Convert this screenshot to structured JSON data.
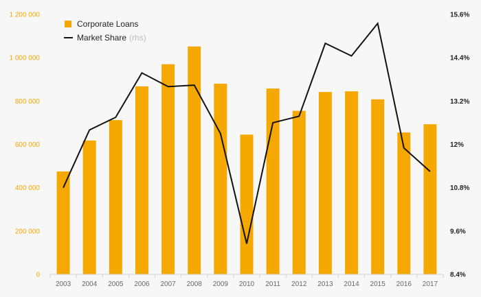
{
  "chart_data": {
    "type": "bar+line",
    "categories": [
      "2003",
      "2004",
      "2005",
      "2006",
      "2007",
      "2008",
      "2009",
      "2010",
      "2011",
      "2012",
      "2013",
      "2014",
      "2015",
      "2016",
      "2017"
    ],
    "series": [
      {
        "name": "Corporate Loans",
        "type": "bar",
        "axis": "left",
        "color": "#f5a800",
        "values": [
          475000,
          618000,
          712000,
          868000,
          970000,
          1052000,
          880000,
          645000,
          858000,
          755000,
          842000,
          845000,
          808000,
          655000,
          693000
        ]
      },
      {
        "name": "Market Share",
        "name_suffix": "(rhs)",
        "type": "line",
        "axis": "right",
        "color": "#111111",
        "values": [
          10.8,
          12.4,
          12.75,
          13.98,
          13.6,
          13.64,
          12.3,
          9.25,
          12.6,
          12.78,
          14.8,
          14.45,
          15.35,
          11.9,
          11.25
        ]
      }
    ],
    "left_axis": {
      "min": 0,
      "max": 1200000,
      "ticks": [
        0,
        200000,
        400000,
        600000,
        800000,
        1000000,
        1200000
      ],
      "tick_labels": [
        "0",
        "200 000",
        "400 000",
        "600 000",
        "800 000",
        "1 000 000",
        "1 200 000"
      ]
    },
    "right_axis": {
      "min": 8.4,
      "max": 15.6,
      "ticks": [
        8.4,
        9.6,
        10.8,
        12,
        13.2,
        14.4,
        15.6
      ],
      "tick_labels": [
        "8.4%",
        "9.6%",
        "10.8%",
        "12%",
        "13.2%",
        "14.4%",
        "15.6%"
      ]
    },
    "legend_position": "top-left",
    "grid": false
  }
}
